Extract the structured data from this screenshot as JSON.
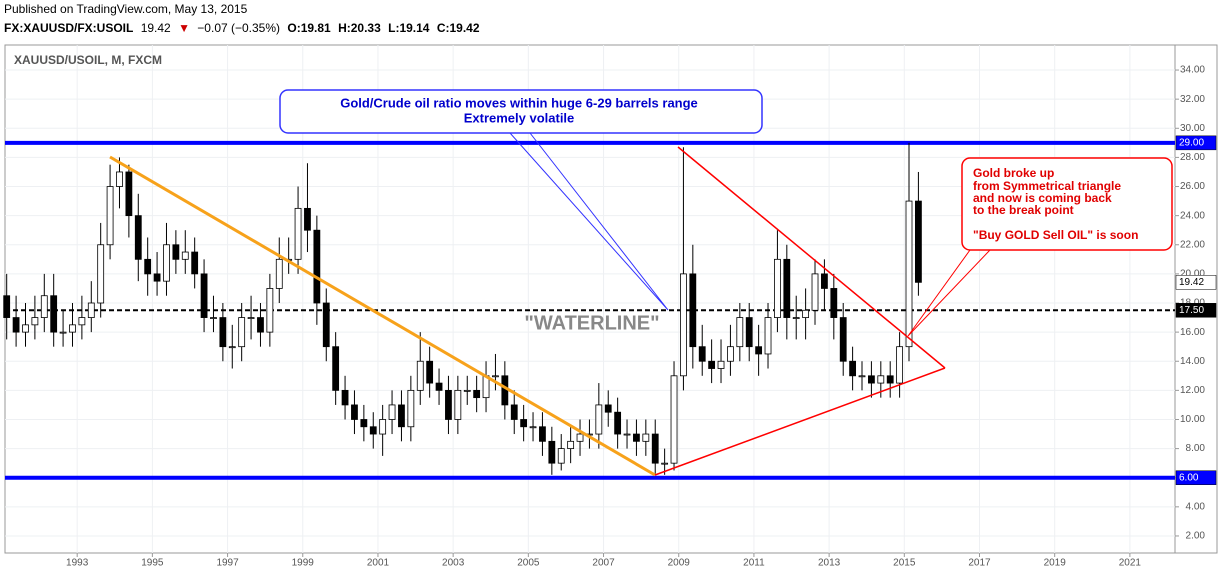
{
  "header": {
    "published": "Published on TradingView.com, May 13, 2015",
    "symbol": "FX:XAUUSD/FX:USOIL",
    "last": "19.42",
    "change": "−0.07 (−0.35%)",
    "ohlc": [
      "O:19.81",
      "H:20.33",
      "L:19.14",
      "C:19.42"
    ]
  },
  "chart_data": {
    "type": "candlestick",
    "subtitle": "XAUUSD/USOIL, M, FXCM",
    "x": [
      1991.125,
      1991.375,
      1991.625,
      1991.875,
      1992.125,
      1992.375,
      1992.625,
      1992.875,
      1993.125,
      1993.375,
      1993.625,
      1993.875,
      1994.125,
      1994.375,
      1994.625,
      1994.875,
      1995.125,
      1995.375,
      1995.625,
      1995.875,
      1996.125,
      1996.375,
      1996.625,
      1996.875,
      1997.125,
      1997.375,
      1997.625,
      1997.875,
      1998.125,
      1998.375,
      1998.625,
      1998.875,
      1999.125,
      1999.375,
      1999.625,
      1999.875,
      2000.125,
      2000.375,
      2000.625,
      2000.875,
      2001.125,
      2001.375,
      2001.625,
      2001.875,
      2002.125,
      2002.375,
      2002.625,
      2002.875,
      2003.125,
      2003.375,
      2003.625,
      2003.875,
      2004.125,
      2004.375,
      2004.625,
      2004.875,
      2005.125,
      2005.375,
      2005.625,
      2005.875,
      2006.125,
      2006.375,
      2006.625,
      2006.875,
      2007.125,
      2007.375,
      2007.625,
      2007.875,
      2008.125,
      2008.375,
      2008.625,
      2008.875,
      2009.125,
      2009.375,
      2009.625,
      2009.875,
      2010.125,
      2010.375,
      2010.625,
      2010.875,
      2011.125,
      2011.375,
      2011.625,
      2011.875,
      2012.125,
      2012.375,
      2012.625,
      2012.875,
      2013.125,
      2013.375,
      2013.625,
      2013.875,
      2014.125,
      2014.375,
      2014.625,
      2014.875,
      2015.125,
      2015.375
    ],
    "open": [
      18.5,
      17,
      16,
      16.5,
      17,
      18.5,
      16,
      16,
      16.5,
      17,
      18,
      22,
      26,
      27,
      24,
      21,
      20,
      19.5,
      22,
      21,
      21.5,
      20,
      17,
      17,
      15,
      15,
      17,
      17,
      16,
      19,
      21,
      21,
      24.5,
      23,
      18,
      15,
      12,
      11,
      10,
      9.5,
      9,
      10,
      11,
      9.5,
      12,
      14,
      12.5,
      12,
      10,
      12,
      12,
      11.5,
      13,
      13,
      11,
      10,
      9.5,
      9.5,
      8.5,
      7,
      8,
      8.5,
      9,
      9,
      11,
      10.5,
      9,
      9,
      8.5,
      9,
      7,
      7,
      13,
      20,
      15,
      14,
      13.5,
      14,
      15,
      17,
      15,
      14.5,
      17,
      21,
      17,
      17,
      17.5,
      20,
      19,
      17,
      14,
      13,
      13,
      12.5,
      13,
      12.5,
      15,
      25
    ],
    "high": [
      20,
      18.5,
      18,
      18.5,
      20,
      20,
      17.5,
      18,
      18.5,
      19.5,
      23.5,
      27.5,
      28,
      27.5,
      25.5,
      22.5,
      21.5,
      23.5,
      23,
      23,
      22.5,
      21,
      18.5,
      18,
      16.5,
      18,
      18.5,
      18,
      20,
      22.5,
      22.5,
      26,
      27.6,
      24,
      19,
      16,
      13,
      12,
      11,
      10.5,
      11,
      12,
      12,
      13,
      16,
      15,
      13.5,
      13,
      13,
      13,
      13,
      14,
      14.5,
      14,
      12,
      11,
      10.5,
      10.5,
      9.5,
      9,
      9.5,
      10,
      10,
      12.5,
      12,
      11.5,
      10,
      10,
      10,
      10,
      8,
      14,
      28.7,
      22,
      16.5,
      15.5,
      15.5,
      16.5,
      18,
      18,
      16.5,
      18,
      23,
      22,
      18.5,
      19,
      21,
      21,
      20,
      18,
      15,
      14,
      14,
      14,
      14,
      16,
      29,
      27
    ],
    "low": [
      15.5,
      15,
      15,
      15.5,
      16,
      15,
      15,
      15,
      15.5,
      16,
      17,
      21,
      24.5,
      22.5,
      19.5,
      18.5,
      18.5,
      18.5,
      20,
      20,
      19,
      16,
      16,
      14,
      13.5,
      14,
      15.5,
      15,
      15,
      18,
      20,
      20,
      21.5,
      16.5,
      14,
      11,
      10,
      9,
      8.5,
      8,
      7.5,
      9,
      8.5,
      8.5,
      11,
      11.5,
      11,
      9,
      9,
      11,
      10.5,
      10.5,
      12,
      10,
      9,
      8.5,
      8.5,
      7.5,
      6.2,
      6.5,
      7,
      7.5,
      8,
      8,
      9.5,
      8,
      8,
      7.5,
      7.5,
      6.2,
      6.2,
      6.5,
      12,
      13.5,
      13,
      12.5,
      12.5,
      13,
      14,
      14,
      13,
      13.5,
      16,
      15.5,
      15.5,
      15.5,
      16.5,
      17.5,
      15.5,
      13,
      12,
      12,
      11.5,
      11.5,
      11.5,
      11.5,
      14,
      18.5
    ],
    "close": [
      17,
      16,
      16.5,
      17,
      18.5,
      16,
      16,
      16.5,
      17,
      18,
      22,
      26,
      27,
      24,
      21,
      20,
      19.5,
      22,
      21,
      21.5,
      20,
      17,
      17,
      15,
      15,
      17,
      17,
      16,
      19,
      21,
      21,
      24.5,
      23,
      18,
      15,
      12,
      11,
      10,
      9.5,
      9,
      10,
      11,
      9.5,
      12,
      14,
      12.5,
      12,
      10,
      12,
      12,
      11.5,
      13,
      13,
      11,
      10,
      9.5,
      9.5,
      8.5,
      7,
      8,
      8.5,
      9,
      9,
      11,
      10.5,
      9,
      9,
      8.5,
      9,
      7,
      7,
      13,
      20,
      15,
      14,
      13.5,
      14,
      15,
      17,
      15,
      14.5,
      17,
      21,
      17,
      17,
      17.5,
      20,
      19,
      17,
      14,
      13,
      13,
      12.5,
      13,
      12.5,
      15,
      25,
      19.42
    ],
    "up_color": "#ffffff",
    "down_color": "#000000",
    "xlim": [
      1991.08,
      2022.2
    ],
    "xticks": [
      1993,
      1995,
      1997,
      1999,
      2001,
      2003,
      2005,
      2007,
      2009,
      2011,
      2013,
      2015,
      2017,
      2019,
      2021
    ],
    "ylim": [
      0.83,
      35.72
    ],
    "yticks": [
      {
        "value": 2,
        "label": "2.00"
      },
      {
        "value": 4,
        "label": "4.00"
      },
      {
        "value": 6,
        "label": "6.00"
      },
      {
        "value": 8,
        "label": "8.00"
      },
      {
        "value": 10,
        "label": "10.00"
      },
      {
        "value": 12,
        "label": "12.00"
      },
      {
        "value": 14,
        "label": "14.00"
      },
      {
        "value": 16,
        "label": "16.00"
      },
      {
        "value": 18,
        "label": "18.00"
      },
      {
        "value": 20,
        "label": "20.00"
      },
      {
        "value": 22,
        "label": "22.00"
      },
      {
        "value": 24,
        "label": "24.00"
      },
      {
        "value": 26,
        "label": "26.00"
      },
      {
        "value": 28,
        "label": "28.00"
      },
      {
        "value": 30,
        "label": "30.00"
      },
      {
        "value": 32,
        "label": "32.00"
      },
      {
        "value": 34,
        "label": "34.00"
      }
    ],
    "grid": true,
    "levels": [
      {
        "value": 29,
        "label": "29.00",
        "color": "#0000ff",
        "style": "solid"
      },
      {
        "value": 17.5,
        "label": "17.50",
        "color": "#000000",
        "style": "dashed"
      },
      {
        "value": 6,
        "label": "6.00",
        "color": "#0000ff",
        "style": "solid"
      }
    ],
    "last_price": {
      "value": 19.42,
      "label": "19.42"
    },
    "annotations": [
      "Gold/Crude oil ratio moves within huge 6-29 barrels range",
      "Extremely volatile",
      "\"WATERLINE\"",
      "Gold broke up",
      "from Symmetrical triangle",
      "and now is coming back",
      "to the break point",
      "\"Buy GOLD Sell OIL\" is soon"
    ]
  }
}
